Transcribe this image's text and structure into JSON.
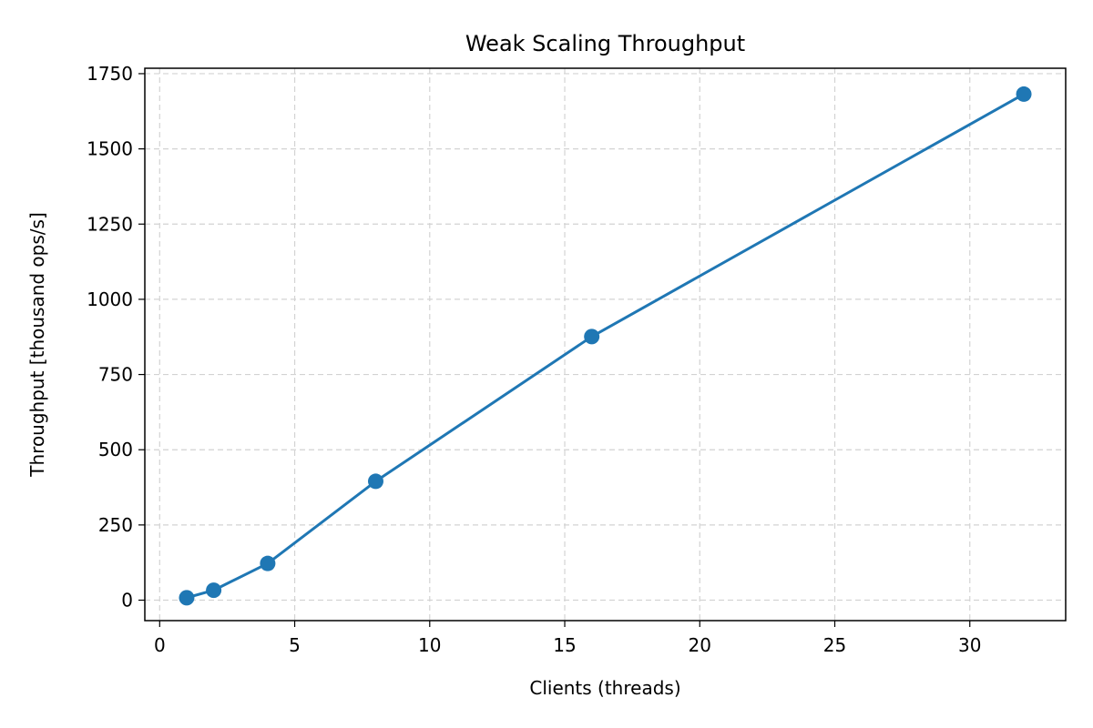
{
  "chart_data": {
    "type": "line",
    "title": "Weak Scaling Throughput",
    "xlabel": "Clients (threads)",
    "ylabel": "Throughput [thousand ops/s]",
    "xlim": [
      -0.55,
      33.55
    ],
    "ylim": [
      -68,
      1768
    ],
    "xticks": [
      0,
      5,
      10,
      15,
      20,
      25,
      30
    ],
    "xtick_labels": [
      "0",
      "5",
      "10",
      "15",
      "20",
      "25",
      "30"
    ],
    "yticks": [
      0,
      250,
      500,
      750,
      1000,
      1250,
      1500,
      1750
    ],
    "ytick_labels": [
      "0",
      "250",
      "500",
      "750",
      "1000",
      "1250",
      "1500",
      "1750"
    ],
    "grid": true,
    "legend": "none",
    "series": [
      {
        "color": "#1f77b4",
        "marker": "circle",
        "x": [
          1,
          2,
          4,
          8,
          16,
          32
        ],
        "y": [
          8,
          33,
          122,
          395,
          876,
          1682
        ]
      }
    ]
  }
}
